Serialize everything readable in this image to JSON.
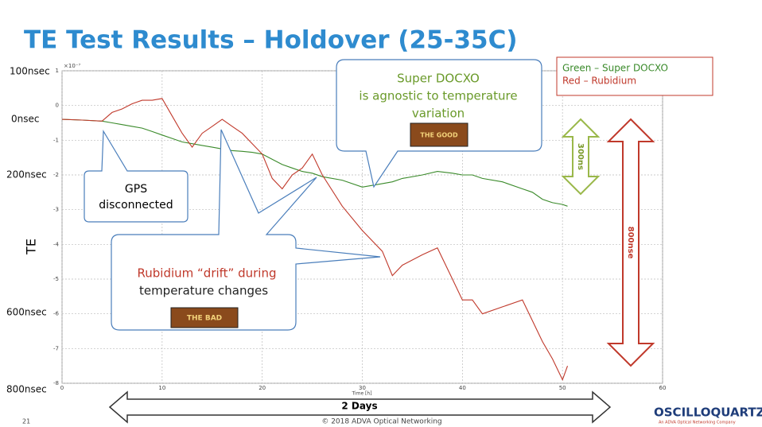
{
  "slide": {
    "title": "TE Test Results – Holdover (25-35C)",
    "left_labels": [
      "100nsec",
      "0nsec",
      "200nsec",
      "600nsec",
      "800nsec"
    ],
    "callout_gps": [
      "GPS",
      "disconnected"
    ],
    "callout_rubidium": [
      "Rubidium “drift” during",
      "temperature changes"
    ],
    "callout_docxo": [
      "Super DOCXO",
      "is agnostic to temperature",
      "variation"
    ],
    "badge_good": "THE GOOD",
    "badge_bad": "THE BAD",
    "arrow_green": "300ns",
    "arrow_red": "800nse",
    "arrow_days": "2 Days",
    "page_number": "21",
    "footer": "© 2018 ADVA Optical Networking",
    "logo": "OSCILLOQUARTZ",
    "logo_sub": "An ADVA Optical Networking Company"
  },
  "chart_data": {
    "type": "line",
    "xlabel": "Time [h]",
    "ylabel": "TE",
    "y_exponent": "×10⁻⁷",
    "x": [
      0,
      2,
      4,
      5,
      6,
      7,
      8,
      9,
      10,
      11,
      12,
      13,
      14,
      15,
      16,
      17,
      18,
      19,
      20,
      21,
      22,
      23,
      24,
      25,
      26,
      28,
      30,
      32,
      33,
      34,
      36,
      37.5,
      39,
      40,
      41,
      42,
      44,
      46,
      47,
      48,
      49,
      50,
      50.5
    ],
    "series": [
      {
        "name": "Green – Super DOCXO",
        "color": "#3a8a2a",
        "values": [
          -0.4,
          -0.42,
          -0.45,
          -0.5,
          -0.55,
          -0.6,
          -0.65,
          -0.75,
          -0.85,
          -0.95,
          -1.05,
          -1.1,
          -1.15,
          -1.2,
          -1.25,
          -1.3,
          -1.32,
          -1.35,
          -1.4,
          -1.55,
          -1.7,
          -1.8,
          -1.9,
          -1.95,
          -2.05,
          -2.15,
          -2.35,
          -2.25,
          -2.2,
          -2.1,
          -2.0,
          -1.9,
          -1.95,
          -2.0,
          -2.0,
          -2.1,
          -2.2,
          -2.4,
          -2.5,
          -2.7,
          -2.8,
          -2.85,
          -2.9
        ]
      },
      {
        "name": "Red – Rubidium",
        "color": "#c0392b",
        "values": [
          -0.4,
          -0.42,
          -0.45,
          -0.2,
          -0.1,
          0.05,
          0.15,
          0.15,
          0.2,
          -0.3,
          -0.8,
          -1.2,
          -0.8,
          -0.6,
          -0.4,
          -0.6,
          -0.8,
          -1.1,
          -1.4,
          -2.1,
          -2.4,
          -2.0,
          -1.8,
          -1.4,
          -2.0,
          -2.9,
          -3.6,
          -4.2,
          -4.9,
          -4.6,
          -4.3,
          -4.1,
          -5.0,
          -5.6,
          -5.6,
          -6.0,
          -5.8,
          -5.6,
          -6.2,
          -6.8,
          -7.3,
          -7.9,
          -7.5
        ]
      }
    ],
    "xlim": [
      0,
      60
    ],
    "xticks": [
      0,
      10,
      20,
      30,
      40,
      50,
      60
    ],
    "ylim": [
      -8,
      1
    ],
    "yticks": [
      1,
      0,
      -1,
      -2,
      -3,
      -4,
      -5,
      -6,
      -7,
      -8
    ],
    "grid": true
  }
}
